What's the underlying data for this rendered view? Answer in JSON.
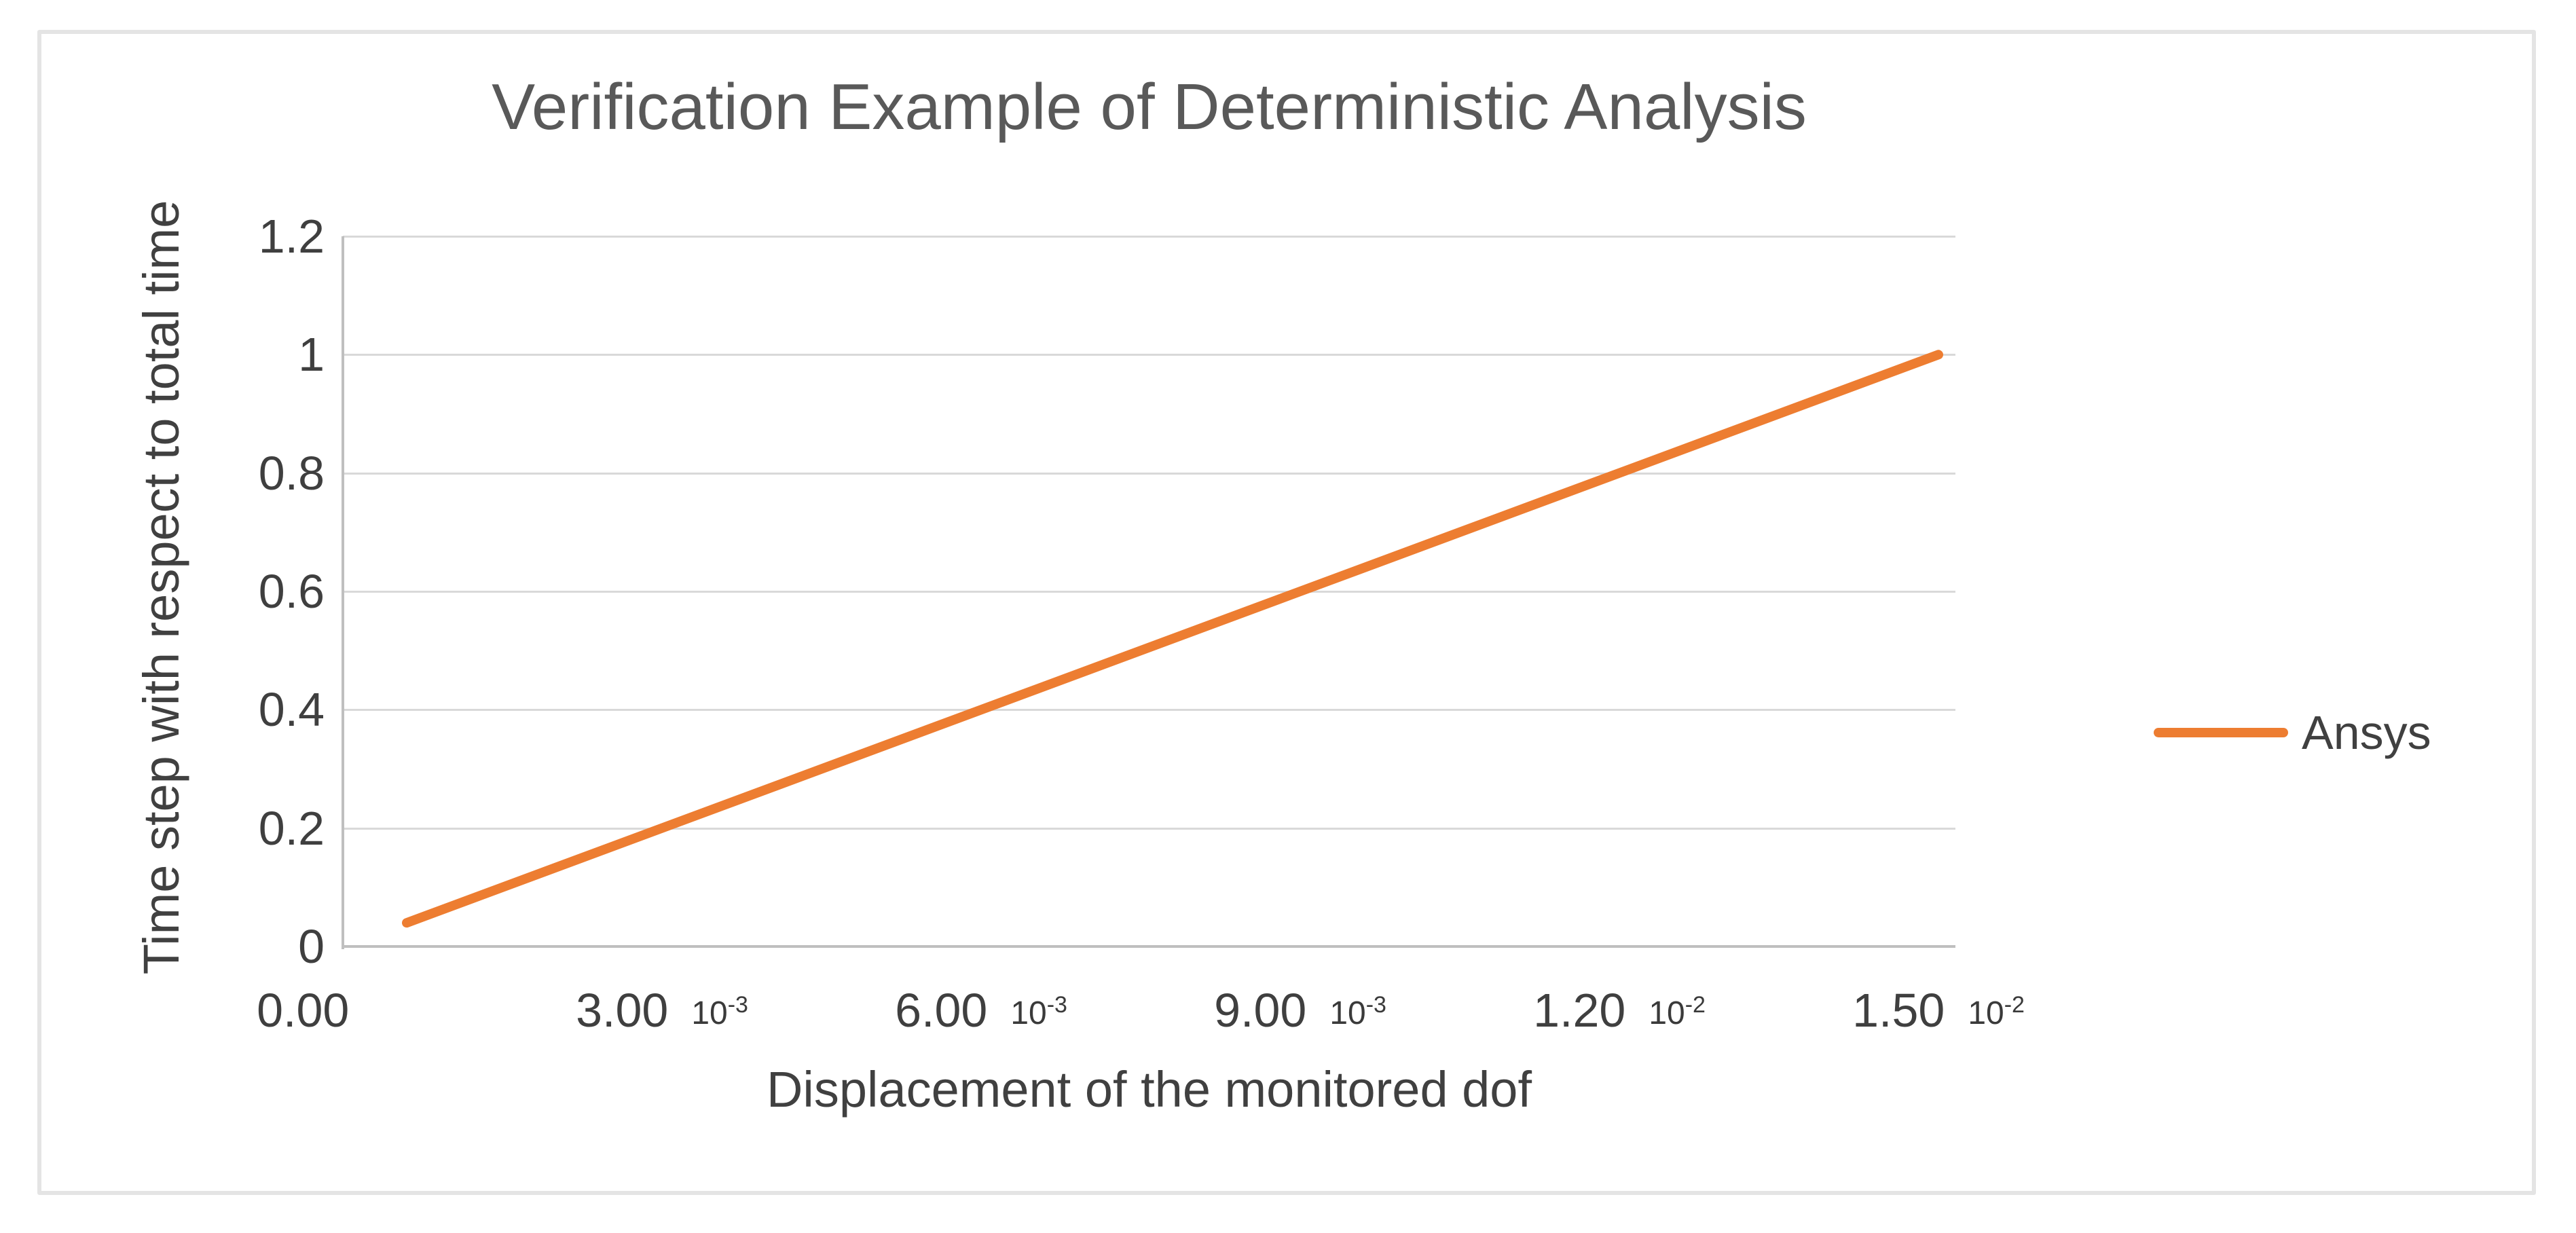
{
  "chart_data": {
    "type": "line",
    "title": "Verification Example of Deterministic Analysis",
    "xlabel": "Displacement of the monitored dof",
    "ylabel": "Time step with respect to total time",
    "xlim": [
      0,
      0.01516
    ],
    "ylim": [
      0,
      1.2
    ],
    "grid": "horizontal",
    "legend_position": "right-middle",
    "x_tick_values": [
      0,
      0.003,
      0.006,
      0.009,
      0.012,
      0.015
    ],
    "x_tick_labels": [
      "0.00",
      "3.00×10⁻³",
      "6.00×10⁻³",
      "9.00×10⁻³",
      "1.20×10⁻²",
      "1.50×10⁻²"
    ],
    "x_tick_parts": [
      {
        "main": "0.00",
        "exp": null
      },
      {
        "main": "3.00",
        "exp": "-3"
      },
      {
        "main": "6.00",
        "exp": "-3"
      },
      {
        "main": "9.00",
        "exp": "-3"
      },
      {
        "main": "1.20",
        "exp": "-2"
      },
      {
        "main": "1.50",
        "exp": "-2"
      }
    ],
    "y_tick_values": [
      0,
      0.2,
      0.4,
      0.6,
      0.8,
      1,
      1.2
    ],
    "y_tick_labels": [
      "0",
      "0.2",
      "0.4",
      "0.6",
      "0.8",
      "1",
      "1.2"
    ],
    "series": [
      {
        "name": "Ansys",
        "color": "#ED7D31",
        "shape": "straight",
        "points": [
          [
            0.0006,
            0.04
          ],
          [
            0.015,
            1.0
          ]
        ]
      }
    ]
  },
  "colors": {
    "series_orange": "#ED7D31",
    "gridline": "#D9D9D9",
    "axis_line": "#BFBFBF",
    "title_text": "#595959",
    "axis_text": "#404040",
    "tick_text": "#3F3F3F",
    "frame_border": "#E4E4E4"
  }
}
